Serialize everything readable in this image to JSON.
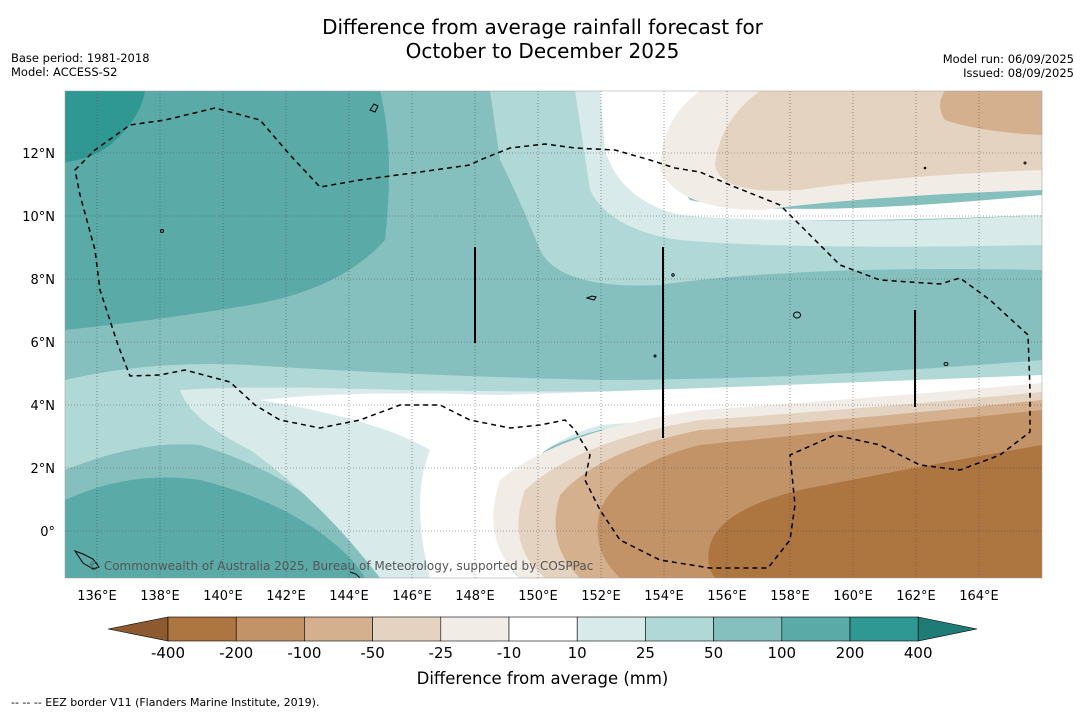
{
  "header": {
    "title_line1": "Difference from average rainfall forecast for",
    "title_line2": "October to December 2025",
    "base_period": "Base period: 1981-2018",
    "model": "Model: ACCESS-S2",
    "model_run": "Model run: 06/09/2025",
    "issued": "Issued: 08/09/2025"
  },
  "map": {
    "lat_labels": [
      "12°N",
      "10°N",
      "8°N",
      "6°N",
      "4°N",
      "2°N",
      "0°"
    ],
    "lon_labels": [
      "136°E",
      "138°E",
      "140°E",
      "142°E",
      "144°E",
      "146°E",
      "148°E",
      "150°E",
      "152°E",
      "154°E",
      "156°E",
      "158°E",
      "160°E",
      "162°E",
      "164°E"
    ],
    "copyright": "© Commonwealth of Australia 2025, Bureau of Meteorology, supported by COSPPac",
    "colors": {
      "lt_-400": "#8c5a2e",
      "-400": "#ad7540",
      "-200": "#c29366",
      "-100": "#d4b08e",
      "-50": "#e5d3c2",
      "-25": "#f2ece6",
      "-10": "#ffffff",
      "10": "#d8eaea",
      "25": "#b0d8d6",
      "50": "#85c0be",
      "100": "#5aaaa8",
      "200": "#2f9893",
      "gt_400": "#1e7b76"
    }
  },
  "colorbar": {
    "ticks": [
      "-400",
      "-200",
      "-100",
      "-50",
      "-25",
      "-10",
      "10",
      "25",
      "50",
      "100",
      "200",
      "400"
    ],
    "title": "Difference from average (mm)"
  },
  "footer": {
    "legend_text": "--  --  -- EEZ border V11 (Flanders Marine Institute, 2019)."
  }
}
